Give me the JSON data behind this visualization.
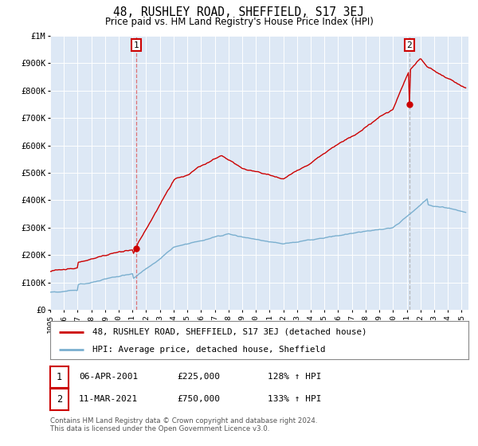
{
  "title": "48, RUSHLEY ROAD, SHEFFIELD, S17 3EJ",
  "subtitle": "Price paid vs. HM Land Registry's House Price Index (HPI)",
  "legend_label_red": "48, RUSHLEY ROAD, SHEFFIELD, S17 3EJ (detached house)",
  "legend_label_blue": "HPI: Average price, detached house, Sheffield",
  "annotation1_date": "06-APR-2001",
  "annotation1_price": "£225,000",
  "annotation1_hpi": "128% ↑ HPI",
  "annotation2_date": "11-MAR-2021",
  "annotation2_price": "£750,000",
  "annotation2_hpi": "133% ↑ HPI",
  "footer": "Contains HM Land Registry data © Crown copyright and database right 2024.\nThis data is licensed under the Open Government Licence v3.0.",
  "ylim": [
    0,
    1000000
  ],
  "red_color": "#cc0000",
  "blue_color": "#7aafcf",
  "bg_color": "#dde8f5",
  "grid_color": "#ffffff",
  "anno_box_color": "#cc0000",
  "vline1_color": "#dd5555",
  "vline2_color": "#aaaaaa",
  "year_start": 1995,
  "year_end": 2025,
  "sale1_year": 2001.27,
  "sale1_val": 225000,
  "sale2_year": 2021.19,
  "sale2_val": 750000
}
